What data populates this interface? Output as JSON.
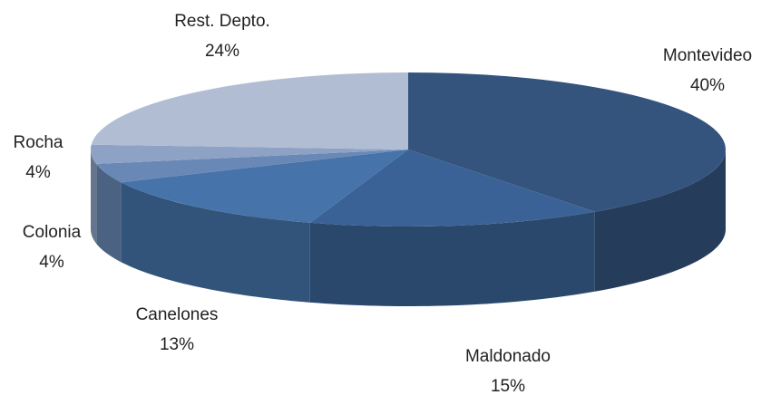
{
  "chart_data": {
    "type": "pie",
    "categories": [
      "Montevideo",
      "Maldonado",
      "Canelones",
      "Colonia",
      "Rocha",
      "Rest. Depto."
    ],
    "values": [
      40,
      15,
      13,
      4,
      4,
      24
    ],
    "value_labels": [
      "40%",
      "15%",
      "13%",
      "4%",
      "4%",
      "24%"
    ],
    "colors": [
      "#34547e",
      "#3b6296",
      "#4674aa",
      "#6a88b5",
      "#8da2c4",
      "#b1bdd3"
    ]
  }
}
